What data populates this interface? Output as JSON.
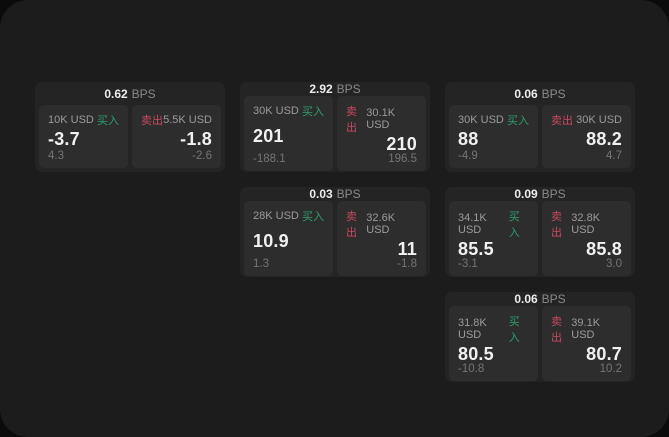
{
  "labels": {
    "bps": "BPS",
    "buy": "买入",
    "sell": "卖出"
  },
  "colors": {
    "backdrop": "#0b0b0b",
    "panel": "#1c1c1c",
    "card": "#242424",
    "tile": "#2d2d2d",
    "buy_green": "#2f9e6d",
    "sell_red": "#c9485f"
  },
  "cards": [
    {
      "bps": "0.62",
      "buy": {
        "amount": "10K USD",
        "value": "-3.7",
        "delta": "4.3"
      },
      "sell": {
        "amount": "5.5K USD",
        "value": "-1.8",
        "delta": "-2.6"
      }
    },
    {
      "bps": "2.92",
      "buy": {
        "amount": "30K USD",
        "value": "201",
        "delta": "-188.1"
      },
      "sell": {
        "amount": "30.1K USD",
        "value": "210",
        "delta": "196.5"
      }
    },
    {
      "bps": "0.06",
      "buy": {
        "amount": "30K USD",
        "value": "88",
        "delta": "-4.9"
      },
      "sell": {
        "amount": "30K USD",
        "value": "88.2",
        "delta": "4.7"
      }
    },
    {
      "bps": "0.03",
      "buy": {
        "amount": "28K USD",
        "value": "10.9",
        "delta": "1.3"
      },
      "sell": {
        "amount": "32.6K USD",
        "value": "11",
        "delta": "-1.8"
      }
    },
    {
      "bps": "0.09",
      "buy": {
        "amount": "34.1K USD",
        "value": "85.5",
        "delta": "-3.1"
      },
      "sell": {
        "amount": "32.8K USD",
        "value": "85.8",
        "delta": "3.0"
      }
    },
    {
      "bps": "0.06",
      "buy": {
        "amount": "31.8K USD",
        "value": "80.5",
        "delta": "-10.8"
      },
      "sell": {
        "amount": "39.1K USD",
        "value": "80.7",
        "delta": "10.2"
      }
    }
  ]
}
